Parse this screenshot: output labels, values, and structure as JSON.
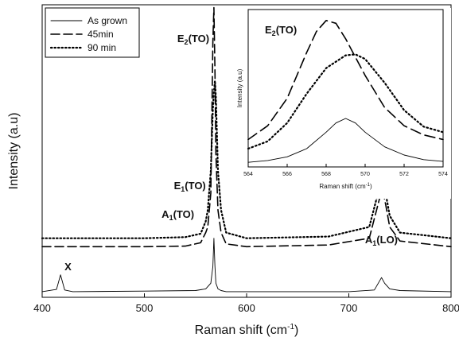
{
  "chart_data": [
    {
      "type": "line",
      "panel": "main",
      "xlabel_base": "Raman shift (cm",
      "xlabel_sup": "-1",
      "xlabel_end": ")",
      "ylabel": "Intensity (a.u)",
      "xlim": [
        400,
        800
      ],
      "x_ticks": [
        400,
        500,
        600,
        700,
        800
      ],
      "x_tick_labels": [
        "400",
        "500",
        "600",
        "700",
        "800"
      ],
      "y_ticks_shown": false,
      "grid": false,
      "legend": {
        "placement": "top-left"
      },
      "series": [
        {
          "name": "As grown",
          "style": "solid",
          "x": [
            400,
            414,
            418,
            422,
            430,
            500,
            550,
            560,
            565,
            567,
            568,
            569,
            570,
            572,
            575,
            580,
            600,
            700,
            725,
            732,
            735,
            740,
            750,
            800
          ],
          "y": [
            0.05,
            0.09,
            0.35,
            0.08,
            0.05,
            0.06,
            0.07,
            0.1,
            0.2,
            0.5,
            1.0,
            0.5,
            0.2,
            0.1,
            0.07,
            0.05,
            0.05,
            0.05,
            0.08,
            0.3,
            0.2,
            0.1,
            0.07,
            0.05
          ]
        },
        {
          "name": "45min",
          "style": "dashed",
          "x": [
            400,
            500,
            540,
            555,
            560,
            562,
            565,
            567,
            568,
            569,
            570,
            572,
            575,
            580,
            600,
            680,
            720,
            730,
            733,
            736,
            740,
            750,
            800
          ],
          "y": [
            0.85,
            0.85,
            0.86,
            0.92,
            1.1,
            1.2,
            1.8,
            4.5,
            5.1,
            4.0,
            2.5,
            1.5,
            1.1,
            0.9,
            0.85,
            0.88,
            1.0,
            1.7,
            1.85,
            1.6,
            1.2,
            0.95,
            0.85
          ]
        },
        {
          "name": "90 min",
          "style": "dotted",
          "x": [
            400,
            500,
            540,
            555,
            560,
            562,
            565,
            567,
            568,
            569,
            570,
            572,
            575,
            580,
            600,
            680,
            720,
            730,
            733,
            736,
            740,
            750,
            800
          ],
          "y": [
            1.0,
            1.0,
            1.02,
            1.08,
            1.3,
            1.5,
            2.2,
            3.3,
            3.6,
            3.8,
            3.5,
            2.2,
            1.5,
            1.1,
            1.0,
            1.03,
            1.2,
            1.9,
            2.0,
            1.8,
            1.4,
            1.1,
            1.0
          ]
        }
      ],
      "annotations": [
        {
          "base": "X",
          "sub": "",
          "end": "",
          "x": 418
        },
        {
          "base": "A",
          "sub": "1",
          "end": "(TO)",
          "x": 548
        },
        {
          "base": "E",
          "sub": "1",
          "end": "(TO)",
          "x": 560
        },
        {
          "base": "E",
          "sub": "2",
          "end": "(TO)",
          "x": 568
        },
        {
          "base": "A",
          "sub": "1",
          "end": "(LO)",
          "x": 733
        }
      ]
    },
    {
      "type": "line",
      "panel": "inset",
      "xlabel_base": "Raman shift (cm",
      "xlabel_sup": "-1",
      "xlabel_end": ")",
      "ylabel": "Intensity (a.u)",
      "xlim": [
        564,
        574
      ],
      "x_ticks": [
        564,
        566,
        568,
        570,
        572,
        574
      ],
      "x_tick_labels": [
        "564",
        "566",
        "568",
        "570",
        "572",
        "574"
      ],
      "y_ticks_shown": false,
      "annotation": {
        "base": "E",
        "sub": "2",
        "end": "(TO)"
      },
      "series": [
        {
          "name": "As grown",
          "style": "solid",
          "x": [
            564,
            565,
            566,
            567,
            568,
            568.5,
            569,
            569.5,
            570,
            571,
            572,
            573,
            574
          ],
          "y": [
            0.05,
            0.07,
            0.11,
            0.2,
            0.38,
            0.48,
            0.53,
            0.48,
            0.38,
            0.22,
            0.13,
            0.08,
            0.06
          ]
        },
        {
          "name": "45min",
          "style": "dashed",
          "x": [
            564,
            565,
            566,
            567,
            567.5,
            568,
            568.5,
            569,
            570,
            571,
            572,
            573,
            574
          ],
          "y": [
            0.3,
            0.45,
            0.75,
            1.25,
            1.48,
            1.6,
            1.57,
            1.4,
            1.0,
            0.65,
            0.45,
            0.35,
            0.3
          ]
        },
        {
          "name": "90 min",
          "style": "dotted",
          "x": [
            564,
            565,
            566,
            567,
            568,
            569,
            569.5,
            570,
            571,
            572,
            573,
            574
          ],
          "y": [
            0.2,
            0.28,
            0.48,
            0.8,
            1.08,
            1.22,
            1.23,
            1.18,
            0.92,
            0.62,
            0.44,
            0.38
          ]
        }
      ]
    }
  ]
}
